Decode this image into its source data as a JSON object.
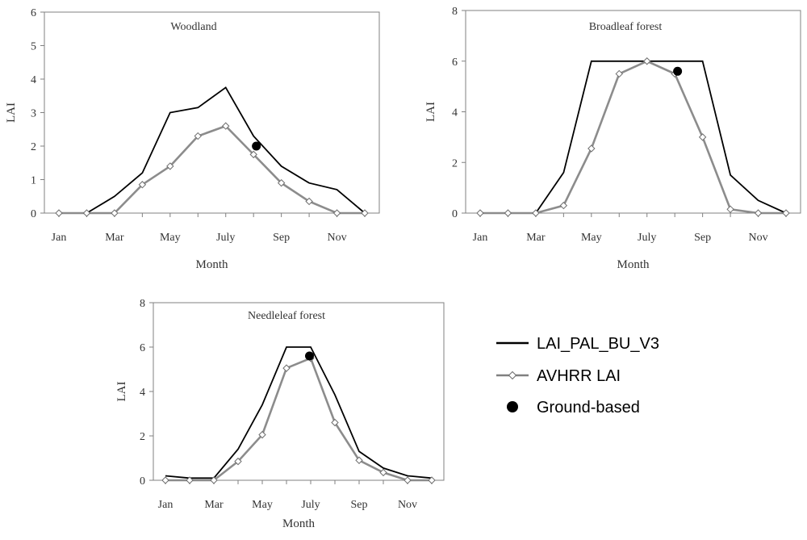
{
  "chart_data": [
    {
      "type": "line",
      "title": "Woodland",
      "xlabel": "Month",
      "ylabel": "LAI",
      "ylim": [
        0,
        6
      ],
      "yticks": [
        0,
        1,
        2,
        3,
        4,
        5,
        6
      ],
      "xlim": [
        1,
        12
      ],
      "x_tick_labels": [
        {
          "x": 1,
          "label": "Jan"
        },
        {
          "x": 3,
          "label": "Mar"
        },
        {
          "x": 5,
          "label": "May"
        },
        {
          "x": 7,
          "label": "July"
        },
        {
          "x": 9,
          "label": "Sep"
        },
        {
          "x": 11,
          "label": "Nov"
        }
      ],
      "series": [
        {
          "name": "LAI_PAL_BU_V3",
          "x": [
            1,
            2,
            3,
            4,
            5,
            6,
            7,
            8,
            9,
            10,
            11,
            12
          ],
          "values": [
            0.0,
            0.0,
            0.5,
            1.2,
            3.0,
            3.15,
            3.75,
            2.3,
            1.4,
            0.9,
            0.7,
            0.0
          ]
        },
        {
          "name": "AVHRR LAI",
          "x": [
            1,
            2,
            3,
            4,
            5,
            6,
            7,
            8,
            9,
            10,
            11,
            12
          ],
          "values": [
            0.0,
            0.0,
            0.0,
            0.85,
            1.4,
            2.3,
            2.6,
            1.75,
            0.9,
            0.35,
            0.0,
            0.0
          ]
        },
        {
          "name": "Ground-based",
          "x": [
            8.1
          ],
          "values": [
            2.0
          ]
        }
      ]
    },
    {
      "type": "line",
      "title": "Broadleaf forest",
      "xlabel": "Month",
      "ylabel": "LAI",
      "ylim": [
        0,
        8
      ],
      "yticks": [
        0,
        2,
        4,
        6,
        8
      ],
      "xlim": [
        1,
        12
      ],
      "x_tick_labels": [
        {
          "x": 1,
          "label": "Jan"
        },
        {
          "x": 3,
          "label": "Mar"
        },
        {
          "x": 5,
          "label": "May"
        },
        {
          "x": 7,
          "label": "July"
        },
        {
          "x": 9,
          "label": "Sep"
        },
        {
          "x": 11,
          "label": "Nov"
        }
      ],
      "series": [
        {
          "name": "LAI_PAL_BU_V3",
          "x": [
            1,
            2,
            3,
            4,
            5,
            6,
            7,
            8,
            9,
            10,
            11,
            12
          ],
          "values": [
            0.0,
            0.0,
            0.0,
            1.6,
            6.0,
            6.0,
            6.0,
            6.0,
            6.0,
            1.5,
            0.5,
            0.0
          ]
        },
        {
          "name": "AVHRR LAI",
          "x": [
            1,
            2,
            3,
            4,
            5,
            6,
            7,
            8,
            9,
            10,
            11,
            12
          ],
          "values": [
            0.0,
            0.0,
            0.0,
            0.3,
            2.55,
            5.5,
            6.0,
            5.5,
            3.0,
            0.15,
            0.0,
            0.0
          ]
        },
        {
          "name": "Ground-based",
          "x": [
            8.1
          ],
          "values": [
            5.6
          ]
        }
      ]
    },
    {
      "type": "line",
      "title": "Needleleaf forest",
      "xlabel": "Month",
      "ylabel": "LAI",
      "ylim": [
        0,
        8
      ],
      "yticks": [
        0,
        2,
        4,
        6,
        8
      ],
      "xlim": [
        1,
        12.5
      ],
      "x_tick_labels": [
        {
          "x": 1,
          "label": "Jan"
        },
        {
          "x": 3,
          "label": "Mar"
        },
        {
          "x": 5,
          "label": "May"
        },
        {
          "x": 7,
          "label": "July"
        },
        {
          "x": 9,
          "label": "Sep"
        },
        {
          "x": 11,
          "label": "Nov"
        }
      ],
      "series": [
        {
          "name": "LAI_PAL_BU_V3",
          "x": [
            1,
            2,
            3,
            4,
            5,
            6,
            7,
            8,
            9,
            10,
            11,
            12
          ],
          "values": [
            0.2,
            0.1,
            0.1,
            1.4,
            3.4,
            6.0,
            6.0,
            3.85,
            1.3,
            0.55,
            0.2,
            0.1
          ]
        },
        {
          "name": "AVHRR LAI",
          "x": [
            1,
            2,
            3,
            4,
            5,
            6,
            7,
            8,
            9,
            10,
            11,
            12
          ],
          "values": [
            0.0,
            0.0,
            0.0,
            0.85,
            2.05,
            5.05,
            5.5,
            2.6,
            0.9,
            0.35,
            0.0,
            0.0
          ]
        },
        {
          "name": "Ground-based",
          "x": [
            6.95
          ],
          "values": [
            5.6
          ]
        }
      ]
    }
  ],
  "legend": [
    {
      "label": "LAI_PAL_BU_V3",
      "kind": "line",
      "color": "#000000"
    },
    {
      "label": "AVHRR LAI",
      "kind": "line-diamond",
      "color": "#808080"
    },
    {
      "label": "Ground-based",
      "kind": "dot",
      "color": "#000000"
    }
  ],
  "colors": {
    "axis": "#808080",
    "model_line": "#000000",
    "avhrr_line": "#8c8c8c",
    "avhrr_marker_fill": "#ffffff",
    "ground_dot": "#000000",
    "text": "#333333"
  }
}
